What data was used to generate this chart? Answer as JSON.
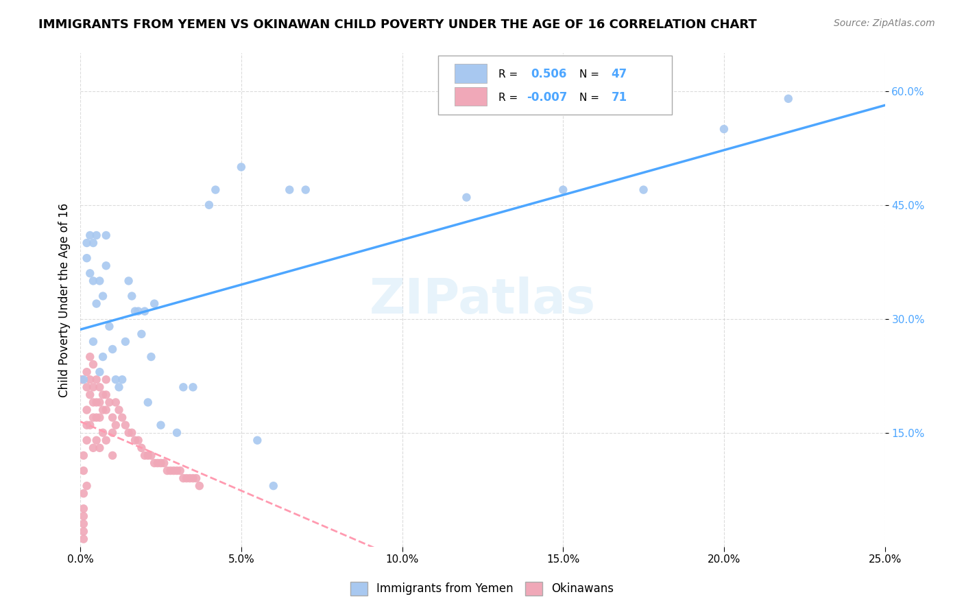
{
  "title": "IMMIGRANTS FROM YEMEN VS OKINAWAN CHILD POVERTY UNDER THE AGE OF 16 CORRELATION CHART",
  "source": "Source: ZipAtlas.com",
  "xlabel": "",
  "ylabel": "Child Poverty Under the Age of 16",
  "xlim": [
    0.0,
    0.25
  ],
  "ylim": [
    0.0,
    0.65
  ],
  "xticks": [
    0.0,
    0.05,
    0.1,
    0.15,
    0.2,
    0.25
  ],
  "yticks": [
    0.15,
    0.3,
    0.45,
    0.6
  ],
  "ytick_labels": [
    "15.0%",
    "30.0%",
    "45.0%",
    "60.0%"
  ],
  "xtick_labels": [
    "0.0%",
    "5.0%",
    "10.0%",
    "15.0%",
    "20.0%",
    "25.0%"
  ],
  "blue_R": 0.506,
  "blue_N": 47,
  "pink_R": -0.007,
  "pink_N": 71,
  "blue_color": "#a8c8f0",
  "pink_color": "#f0a8b8",
  "blue_line_color": "#4da6ff",
  "pink_line_color": "#ff9ab0",
  "watermark": "ZIPatlas",
  "legend_blue_label": "Immigrants from Yemen",
  "legend_pink_label": "Okinawans",
  "blue_x": [
    0.001,
    0.002,
    0.002,
    0.003,
    0.003,
    0.004,
    0.004,
    0.004,
    0.005,
    0.005,
    0.006,
    0.006,
    0.007,
    0.007,
    0.008,
    0.008,
    0.009,
    0.01,
    0.011,
    0.012,
    0.013,
    0.014,
    0.015,
    0.016,
    0.017,
    0.018,
    0.019,
    0.02,
    0.021,
    0.022,
    0.023,
    0.025,
    0.03,
    0.032,
    0.035,
    0.04,
    0.042,
    0.05,
    0.055,
    0.06,
    0.065,
    0.07,
    0.12,
    0.15,
    0.175,
    0.2,
    0.22
  ],
  "blue_y": [
    0.22,
    0.4,
    0.38,
    0.41,
    0.36,
    0.4,
    0.35,
    0.27,
    0.41,
    0.32,
    0.35,
    0.23,
    0.33,
    0.25,
    0.37,
    0.41,
    0.29,
    0.26,
    0.22,
    0.21,
    0.22,
    0.27,
    0.35,
    0.33,
    0.31,
    0.31,
    0.28,
    0.31,
    0.19,
    0.25,
    0.32,
    0.16,
    0.15,
    0.21,
    0.21,
    0.45,
    0.47,
    0.5,
    0.14,
    0.08,
    0.47,
    0.47,
    0.46,
    0.47,
    0.47,
    0.55,
    0.59
  ],
  "pink_x": [
    0.0005,
    0.001,
    0.001,
    0.001,
    0.001,
    0.001,
    0.001,
    0.001,
    0.001,
    0.002,
    0.002,
    0.002,
    0.002,
    0.002,
    0.002,
    0.003,
    0.003,
    0.003,
    0.003,
    0.004,
    0.004,
    0.004,
    0.004,
    0.004,
    0.005,
    0.005,
    0.005,
    0.005,
    0.006,
    0.006,
    0.006,
    0.006,
    0.007,
    0.007,
    0.007,
    0.008,
    0.008,
    0.008,
    0.008,
    0.009,
    0.01,
    0.01,
    0.01,
    0.011,
    0.011,
    0.012,
    0.013,
    0.014,
    0.015,
    0.016,
    0.017,
    0.018,
    0.019,
    0.02,
    0.021,
    0.022,
    0.023,
    0.024,
    0.025,
    0.026,
    0.027,
    0.028,
    0.029,
    0.03,
    0.031,
    0.032,
    0.033,
    0.034,
    0.035,
    0.036,
    0.037
  ],
  "pink_y": [
    0.22,
    0.12,
    0.1,
    0.07,
    0.05,
    0.04,
    0.03,
    0.02,
    0.01,
    0.23,
    0.21,
    0.18,
    0.16,
    0.14,
    0.08,
    0.25,
    0.22,
    0.2,
    0.16,
    0.24,
    0.21,
    0.19,
    0.17,
    0.13,
    0.22,
    0.19,
    0.17,
    0.14,
    0.21,
    0.19,
    0.17,
    0.13,
    0.2,
    0.18,
    0.15,
    0.22,
    0.2,
    0.18,
    0.14,
    0.19,
    0.17,
    0.15,
    0.12,
    0.19,
    0.16,
    0.18,
    0.17,
    0.16,
    0.15,
    0.15,
    0.14,
    0.14,
    0.13,
    0.12,
    0.12,
    0.12,
    0.11,
    0.11,
    0.11,
    0.11,
    0.1,
    0.1,
    0.1,
    0.1,
    0.1,
    0.09,
    0.09,
    0.09,
    0.09,
    0.09,
    0.08
  ]
}
